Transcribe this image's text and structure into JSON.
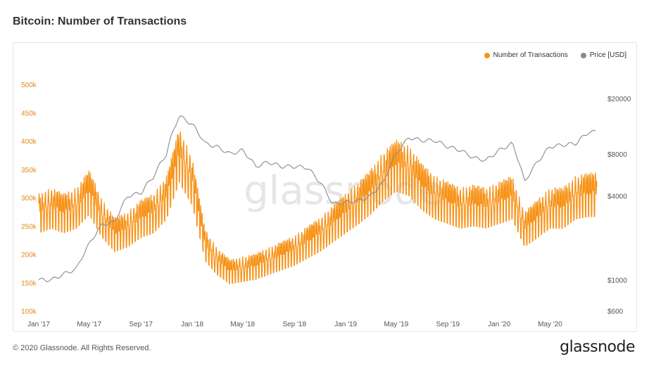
{
  "header": {
    "title": "Bitcoin: Number of Transactions"
  },
  "footer": {
    "copyright": "© 2020 Glassnode. All Rights Reserved.",
    "brand": "glassnode"
  },
  "watermark": "glassnode",
  "colors": {
    "transactions": "#f7931a",
    "price": "#8a8a8a",
    "left_ticks": "#e08a1e"
  },
  "chart_data": {
    "type": "line",
    "title": "Bitcoin: Number of Transactions",
    "legend": {
      "placement": "top-right",
      "items": [
        "Number of Transactions",
        "Price [USD]"
      ]
    },
    "x_tick_labels": [
      "Jan '17",
      "May '17",
      "Sep '17",
      "Jan '18",
      "May '18",
      "Sep '18",
      "Jan '19",
      "May '19",
      "Sep '19",
      "Jan '20",
      "May '20"
    ],
    "left_axis": {
      "ticks": [
        "100k",
        "150k",
        "200k",
        "250k",
        "300k",
        "350k",
        "400k",
        "450k",
        "500k"
      ],
      "range": [
        100000,
        500000
      ]
    },
    "right_axis": {
      "scale": "log",
      "ticks": [
        "$600",
        "$1000",
        "$4000",
        "$8000",
        "$20000"
      ],
      "range": [
        600,
        20000
      ]
    },
    "series": [
      {
        "name": "Number of Transactions",
        "axis": "left",
        "points": [
          [
            "2017-01-01",
            290000
          ],
          [
            "2017-02-01",
            300000
          ],
          [
            "2017-03-01",
            290000
          ],
          [
            "2017-04-01",
            300000
          ],
          [
            "2017-05-01",
            330000
          ],
          [
            "2017-06-01",
            280000
          ],
          [
            "2017-07-01",
            250000
          ],
          [
            "2017-08-01",
            260000
          ],
          [
            "2017-09-01",
            280000
          ],
          [
            "2017-10-01",
            290000
          ],
          [
            "2017-11-01",
            320000
          ],
          [
            "2017-12-01",
            400000
          ],
          [
            "2018-01-01",
            350000
          ],
          [
            "2018-02-01",
            230000
          ],
          [
            "2018-03-01",
            200000
          ],
          [
            "2018-04-01",
            180000
          ],
          [
            "2018-05-01",
            185000
          ],
          [
            "2018-06-01",
            190000
          ],
          [
            "2018-07-01",
            200000
          ],
          [
            "2018-08-01",
            210000
          ],
          [
            "2018-09-01",
            220000
          ],
          [
            "2018-10-01",
            235000
          ],
          [
            "2018-11-01",
            250000
          ],
          [
            "2018-12-01",
            270000
          ],
          [
            "2019-01-01",
            290000
          ],
          [
            "2019-02-01",
            310000
          ],
          [
            "2019-03-01",
            330000
          ],
          [
            "2019-04-01",
            360000
          ],
          [
            "2019-05-01",
            380000
          ],
          [
            "2019-06-01",
            370000
          ],
          [
            "2019-07-01",
            340000
          ],
          [
            "2019-08-01",
            320000
          ],
          [
            "2019-09-01",
            310000
          ],
          [
            "2019-10-01",
            300000
          ],
          [
            "2019-11-01",
            305000
          ],
          [
            "2019-12-01",
            300000
          ],
          [
            "2020-01-01",
            310000
          ],
          [
            "2020-02-01",
            320000
          ],
          [
            "2020-03-01",
            260000
          ],
          [
            "2020-04-01",
            280000
          ],
          [
            "2020-05-01",
            300000
          ],
          [
            "2020-06-01",
            300000
          ],
          [
            "2020-07-01",
            320000
          ],
          [
            "2020-08-01",
            325000
          ]
        ]
      },
      {
        "name": "Price [USD]",
        "axis": "right",
        "points": [
          [
            "2017-01-01",
            1000
          ],
          [
            "2017-02-01",
            1000
          ],
          [
            "2017-03-01",
            1100
          ],
          [
            "2017-04-01",
            1200
          ],
          [
            "2017-05-01",
            1800
          ],
          [
            "2017-06-01",
            2500
          ],
          [
            "2017-07-01",
            2600
          ],
          [
            "2017-08-01",
            4000
          ],
          [
            "2017-09-01",
            4200
          ],
          [
            "2017-10-01",
            5500
          ],
          [
            "2017-11-01",
            8000
          ],
          [
            "2017-12-01",
            15000
          ],
          [
            "2018-01-01",
            13000
          ],
          [
            "2018-02-01",
            9500
          ],
          [
            "2018-03-01",
            9000
          ],
          [
            "2018-04-01",
            8000
          ],
          [
            "2018-05-01",
            8500
          ],
          [
            "2018-06-01",
            6500
          ],
          [
            "2018-07-01",
            7000
          ],
          [
            "2018-08-01",
            6500
          ],
          [
            "2018-09-01",
            6500
          ],
          [
            "2018-10-01",
            6400
          ],
          [
            "2018-11-01",
            5000
          ],
          [
            "2018-12-01",
            3500
          ],
          [
            "2019-01-01",
            3600
          ],
          [
            "2019-02-01",
            3700
          ],
          [
            "2019-03-01",
            4000
          ],
          [
            "2019-04-01",
            5000
          ],
          [
            "2019-05-01",
            8000
          ],
          [
            "2019-06-01",
            10500
          ],
          [
            "2019-07-01",
            10000
          ],
          [
            "2019-08-01",
            10000
          ],
          [
            "2019-09-01",
            9000
          ],
          [
            "2019-10-01",
            8500
          ],
          [
            "2019-11-01",
            7500
          ],
          [
            "2019-12-01",
            7200
          ],
          [
            "2020-01-01",
            8500
          ],
          [
            "2020-02-01",
            9500
          ],
          [
            "2020-03-01",
            5000
          ],
          [
            "2020-04-01",
            7000
          ],
          [
            "2020-05-01",
            9000
          ],
          [
            "2020-06-01",
            9300
          ],
          [
            "2020-07-01",
            9500
          ],
          [
            "2020-08-01",
            11500
          ]
        ]
      }
    ]
  }
}
